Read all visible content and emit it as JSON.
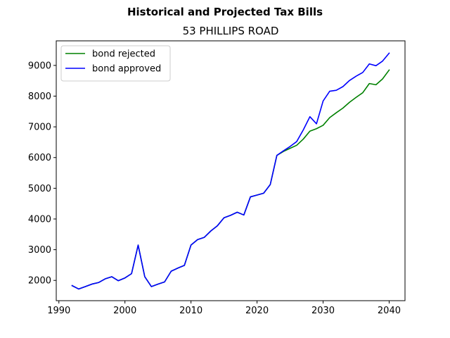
{
  "chart_data": {
    "type": "line",
    "suptitle": "Historical and Projected Tax Bills",
    "title": "53 PHILLIPS ROAD",
    "xlabel": "",
    "ylabel": "",
    "xlim": [
      1989.6,
      2042.4
    ],
    "ylim": [
      1340,
      9800
    ],
    "xticks": [
      1990,
      2000,
      2010,
      2020,
      2030,
      2040
    ],
    "yticks": [
      2000,
      3000,
      4000,
      5000,
      6000,
      7000,
      8000,
      9000
    ],
    "grid": false,
    "legend": "upper-left",
    "series": [
      {
        "name": "bond rejected",
        "color": "#008000",
        "x": [
          1992,
          1993,
          1994,
          1995,
          1996,
          1997,
          1998,
          1999,
          2000,
          2001,
          2002,
          2003,
          2004,
          2005,
          2006,
          2007,
          2008,
          2009,
          2010,
          2011,
          2012,
          2013,
          2014,
          2015,
          2016,
          2017,
          2018,
          2019,
          2020,
          2021,
          2022,
          2023,
          2024,
          2025,
          2026,
          2027,
          2028,
          2029,
          2030,
          2031,
          2032,
          2033,
          2034,
          2035,
          2036,
          2037,
          2038,
          2039,
          2040
        ],
        "y": [
          1830,
          1720,
          1800,
          1880,
          1930,
          2050,
          2120,
          1990,
          2080,
          2220,
          3150,
          2120,
          1800,
          1880,
          1950,
          2300,
          2400,
          2490,
          3150,
          3330,
          3400,
          3610,
          3780,
          4040,
          4120,
          4220,
          4130,
          4720,
          4780,
          4840,
          5120,
          6070,
          6200,
          6300,
          6400,
          6600,
          6860,
          6940,
          7050,
          7300,
          7460,
          7610,
          7800,
          7960,
          8110,
          8410,
          8370,
          8560,
          8850
        ]
      },
      {
        "name": "bond approved",
        "color": "#0000ff",
        "x": [
          1992,
          1993,
          1994,
          1995,
          1996,
          1997,
          1998,
          1999,
          2000,
          2001,
          2002,
          2003,
          2004,
          2005,
          2006,
          2007,
          2008,
          2009,
          2010,
          2011,
          2012,
          2013,
          2014,
          2015,
          2016,
          2017,
          2018,
          2019,
          2020,
          2021,
          2022,
          2023,
          2024,
          2025,
          2026,
          2027,
          2028,
          2029,
          2030,
          2031,
          2032,
          2033,
          2034,
          2035,
          2036,
          2037,
          2038,
          2039,
          2040
        ],
        "y": [
          1830,
          1720,
          1800,
          1880,
          1930,
          2050,
          2120,
          1990,
          2080,
          2220,
          3150,
          2120,
          1800,
          1880,
          1950,
          2300,
          2400,
          2490,
          3150,
          3330,
          3400,
          3610,
          3780,
          4040,
          4120,
          4220,
          4130,
          4720,
          4780,
          4840,
          5120,
          6070,
          6220,
          6360,
          6520,
          6900,
          7330,
          7100,
          7840,
          8160,
          8190,
          8310,
          8510,
          8650,
          8770,
          9050,
          8990,
          9140,
          9400
        ]
      }
    ]
  }
}
